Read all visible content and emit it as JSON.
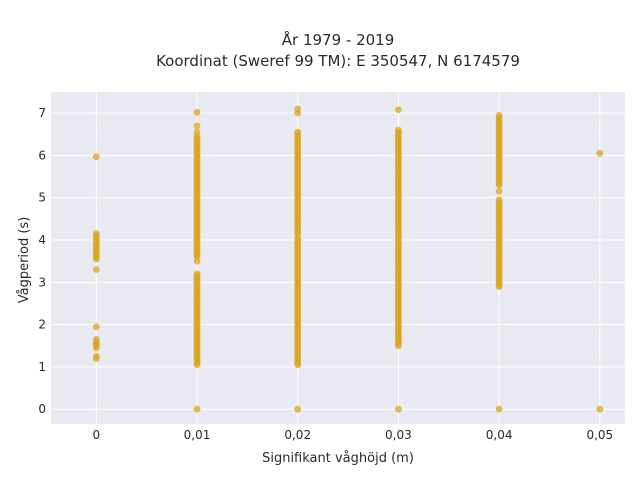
{
  "chart_data": {
    "type": "scatter",
    "title_line1": "År 1979 - 2019",
    "title_line2": "Koordinat (Sweref 99 TM): E 350547, N 6174579",
    "xlabel": "Signifikant våghöjd (m)",
    "ylabel": "Vågperiod (s)",
    "xlim": [
      -0.0045,
      0.0525
    ],
    "ylim": [
      -0.35,
      7.5
    ],
    "grid": true,
    "background_color": "#e9e9f1",
    "marker_color": "#d9a520",
    "x_ticks": [
      {
        "value": 0,
        "label": "0"
      },
      {
        "value": 0.01,
        "label": "0,01"
      },
      {
        "value": 0.02,
        "label": "0,02"
      },
      {
        "value": 0.03,
        "label": "0,03"
      },
      {
        "value": 0.04,
        "label": "0,04"
      },
      {
        "value": 0.05,
        "label": "0,05"
      }
    ],
    "y_ticks": [
      {
        "value": 0,
        "label": "0"
      },
      {
        "value": 1,
        "label": "1"
      },
      {
        "value": 2,
        "label": "2"
      },
      {
        "value": 3,
        "label": "3"
      },
      {
        "value": 4,
        "label": "4"
      },
      {
        "value": 5,
        "label": "5"
      },
      {
        "value": 6,
        "label": "6"
      },
      {
        "value": 7,
        "label": "7"
      }
    ],
    "columns": [
      {
        "x": 0,
        "ranges": [
          [
            1.2,
            1.25
          ],
          [
            1.45,
            1.65
          ],
          [
            3.55,
            4.15
          ]
        ],
        "points": [
          1.95,
          3.3,
          5.97
        ]
      },
      {
        "x": 0.01,
        "ranges": [
          [
            1.05,
            3.2
          ],
          [
            3.6,
            6.45
          ]
        ],
        "points": [
          0,
          3.5,
          6.55,
          6.7,
          7.02
        ]
      },
      {
        "x": 0.02,
        "ranges": [
          [
            1.05,
            4.05
          ],
          [
            4.15,
            6.55
          ]
        ],
        "points": [
          0,
          7.0,
          7.1
        ]
      },
      {
        "x": 0.03,
        "ranges": [
          [
            1.5,
            6.6
          ]
        ],
        "points": [
          0,
          7.08
        ]
      },
      {
        "x": 0.04,
        "ranges": [
          [
            2.9,
            4.95
          ],
          [
            5.3,
            6.95
          ]
        ],
        "points": [
          0,
          5.15
        ]
      },
      {
        "x": 0.05,
        "ranges": [],
        "points": [
          0,
          6.05
        ]
      }
    ]
  }
}
